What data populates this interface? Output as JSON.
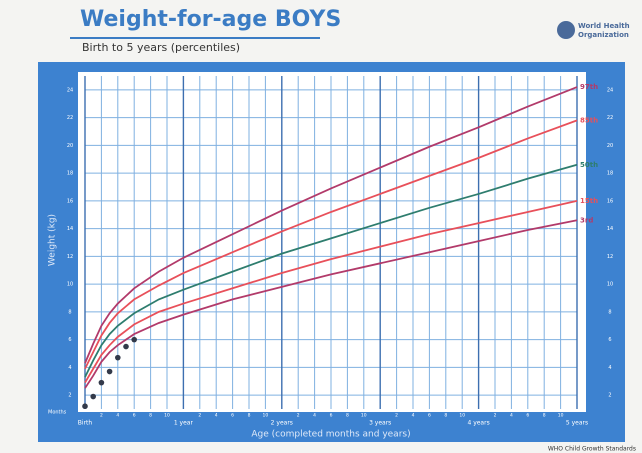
{
  "chart_data": {
    "type": "line",
    "title": "Weight-for-age BOYS",
    "subtitle": "Birth to 5 years (percentiles)",
    "organization": [
      "World Health",
      "Organization"
    ],
    "footer": "WHO Child Growth Standards",
    "x_label": "Age (completed months and years)",
    "y_label": "Weight (kg)",
    "x_unit_label": "Months",
    "xlim": [
      0,
      60
    ],
    "ylim": [
      1,
      25
    ],
    "xticks": [
      {
        "value": 0,
        "label": "Birth"
      },
      2,
      4,
      6,
      8,
      10,
      {
        "value": 12,
        "label": "1 year"
      },
      {
        "value": 14,
        "label": "2"
      },
      {
        "value": 16,
        "label": "4"
      },
      {
        "value": 18,
        "label": "6"
      },
      {
        "value": 20,
        "label": "8"
      },
      {
        "value": 22,
        "label": "10"
      },
      {
        "value": 24,
        "label": "2 years"
      },
      {
        "value": 26,
        "label": "2"
      },
      {
        "value": 28,
        "label": "4"
      },
      {
        "value": 30,
        "label": "6"
      },
      {
        "value": 32,
        "label": "8"
      },
      {
        "value": 34,
        "label": "10"
      },
      {
        "value": 36,
        "label": "3 years"
      },
      {
        "value": 38,
        "label": "2"
      },
      {
        "value": 40,
        "label": "4"
      },
      {
        "value": 42,
        "label": "6"
      },
      {
        "value": 44,
        "label": "8"
      },
      {
        "value": 46,
        "label": "10"
      },
      {
        "value": 48,
        "label": "4 years"
      },
      {
        "value": 50,
        "label": "2"
      },
      {
        "value": 52,
        "label": "4"
      },
      {
        "value": 54,
        "label": "6"
      },
      {
        "value": 56,
        "label": "8"
      },
      {
        "value": 58,
        "label": "10"
      },
      {
        "value": 60,
        "label": "5 years"
      }
    ],
    "yticks": [
      2,
      4,
      6,
      8,
      10,
      12,
      14,
      16,
      18,
      20,
      22,
      24
    ],
    "grid": true,
    "x": [
      0,
      1,
      2,
      3,
      4,
      6,
      9,
      12,
      18,
      24,
      30,
      36,
      42,
      48,
      54,
      60
    ],
    "series": [
      {
        "name": "97th",
        "color": "#b23a6a",
        "values": [
          4.3,
          5.7,
          7.0,
          7.9,
          8.6,
          9.7,
          10.9,
          11.9,
          13.6,
          15.3,
          16.9,
          18.4,
          19.9,
          21.3,
          22.8,
          24.2
        ]
      },
      {
        "name": "85th",
        "color": "#e8505a",
        "values": [
          3.9,
          5.1,
          6.3,
          7.2,
          7.9,
          8.9,
          9.9,
          10.8,
          12.3,
          13.8,
          15.2,
          16.5,
          17.8,
          19.1,
          20.5,
          21.8
        ]
      },
      {
        "name": "50th",
        "color": "#2e7d6e",
        "values": [
          3.3,
          4.5,
          5.6,
          6.4,
          7.0,
          7.9,
          8.9,
          9.6,
          10.9,
          12.2,
          13.3,
          14.4,
          15.5,
          16.5,
          17.6,
          18.6
        ]
      },
      {
        "name": "15th",
        "color": "#e8505a",
        "values": [
          2.9,
          3.9,
          4.9,
          5.6,
          6.2,
          7.1,
          8.0,
          8.6,
          9.7,
          10.8,
          11.8,
          12.7,
          13.6,
          14.4,
          15.2,
          16.0
        ]
      },
      {
        "name": "3rd",
        "color": "#b23a6a",
        "values": [
          2.5,
          3.4,
          4.4,
          5.1,
          5.6,
          6.4,
          7.2,
          7.8,
          8.9,
          9.8,
          10.7,
          11.5,
          12.3,
          13.1,
          13.9,
          14.6
        ]
      }
    ],
    "points": {
      "color": "#333a4a",
      "x": [
        0,
        1,
        2,
        3,
        4,
        5,
        6
      ],
      "values": [
        1.2,
        1.9,
        2.9,
        3.7,
        4.7,
        5.5,
        6.0
      ]
    }
  }
}
